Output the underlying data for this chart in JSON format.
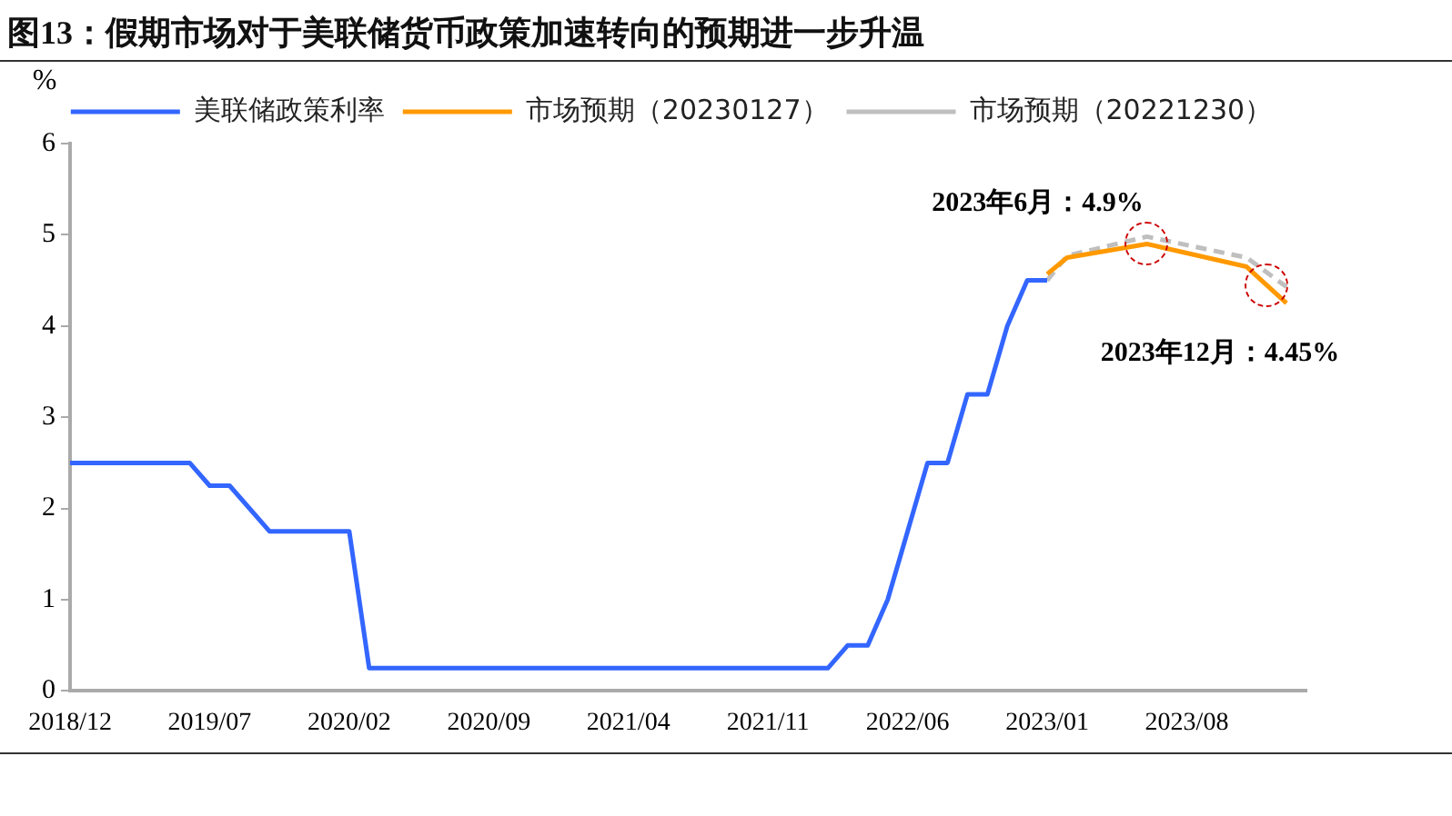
{
  "chart_data": {
    "type": "line",
    "title": "图13：假期市场对于美联储货币政策加速转向的预期进一步升温",
    "ylabel": "%",
    "xlim": [
      "2018-12",
      "2024-02"
    ],
    "xticks": [
      {
        "value": "2018-12",
        "label": "2018/12"
      },
      {
        "value": "2019-07",
        "label": "2019/07"
      },
      {
        "value": "2020-02",
        "label": "2020/02"
      },
      {
        "value": "2020-09",
        "label": "2020/09"
      },
      {
        "value": "2021-04",
        "label": "2021/04"
      },
      {
        "value": "2021-11",
        "label": "2021/11"
      },
      {
        "value": "2022-06",
        "label": "2022/06"
      },
      {
        "value": "2023-01",
        "label": "2023/01"
      },
      {
        "value": "2023-08",
        "label": "2023/08"
      }
    ],
    "ylim": [
      0,
      6
    ],
    "yticks": [
      0,
      1,
      2,
      3,
      4,
      5,
      6
    ],
    "grid": false,
    "legend": "top",
    "marker": "none",
    "series": [
      {
        "name": "美联储政策利率",
        "color": "#3366ff",
        "line_style": "solid",
        "x": [
          "2018-12",
          "2019-06",
          "2019-07",
          "2019-08",
          "2019-10",
          "2020-02",
          "2020-03",
          "2022-02",
          "2022-03",
          "2022-04",
          "2022-05",
          "2022-06",
          "2022-07",
          "2022-08",
          "2022-09",
          "2022-10",
          "2022-11",
          "2022-12",
          "2023-01"
        ],
        "values": [
          2.5,
          2.5,
          2.25,
          2.25,
          1.75,
          1.75,
          0.25,
          0.25,
          0.5,
          0.5,
          1.0,
          1.75,
          2.5,
          2.5,
          3.25,
          3.25,
          4.0,
          4.5,
          4.5
        ]
      },
      {
        "name": "市场预期（20230127）",
        "color": "#ff9900",
        "line_style": "solid",
        "x": [
          "2023-01",
          "2023-02",
          "2023-06",
          "2023-11",
          "2023-12",
          "2024-01"
        ],
        "values": [
          4.57,
          4.75,
          4.9,
          4.65,
          4.45,
          4.25
        ]
      },
      {
        "name": "市场预期（20221230）",
        "color": "#bfbfbf",
        "line_style": "dashed",
        "x": [
          "2023-01",
          "2023-02",
          "2023-06",
          "2023-11",
          "2024-01"
        ],
        "values": [
          4.5,
          4.77,
          4.98,
          4.75,
          4.43
        ]
      }
    ],
    "annotations": [
      {
        "text": "2023年6月：4.9%",
        "x": "2023-06",
        "y": 4.9
      },
      {
        "text": "2023年12月：4.45%",
        "x": "2023-12",
        "y": 4.45
      }
    ]
  }
}
